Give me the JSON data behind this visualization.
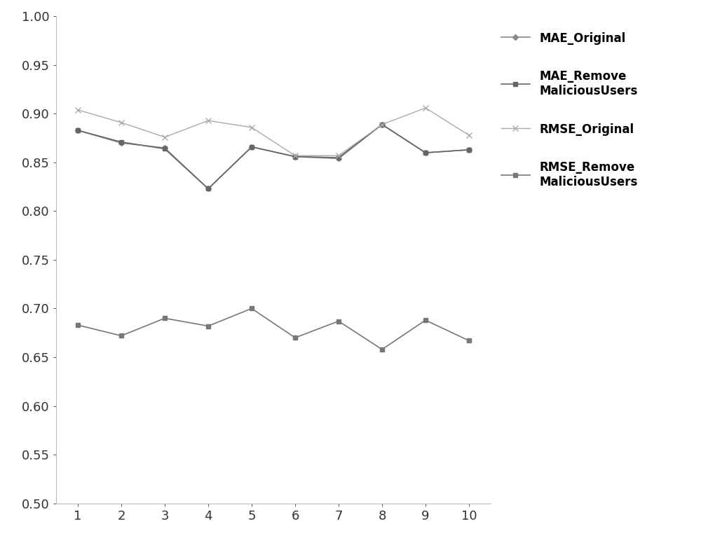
{
  "x": [
    1,
    2,
    3,
    4,
    5,
    6,
    7,
    8,
    9,
    10
  ],
  "MAE_Original": [
    0.883,
    0.87,
    0.865,
    0.823,
    0.866,
    0.856,
    0.854,
    0.889,
    0.86,
    0.863
  ],
  "MAE_Remove": [
    0.883,
    0.871,
    0.864,
    0.823,
    0.866,
    0.856,
    0.855,
    0.889,
    0.86,
    0.863
  ],
  "RMSE_Original": [
    0.904,
    0.891,
    0.876,
    0.893,
    0.886,
    0.857,
    0.857,
    0.889,
    0.906,
    0.878
  ],
  "RMSE_Remove_MU": [
    0.683,
    0.672,
    0.69,
    0.682,
    0.7,
    0.67,
    0.687,
    0.658,
    0.688,
    0.667
  ],
  "ylim": [
    0.5,
    1.0
  ],
  "yticks": [
    0.5,
    0.55,
    0.6,
    0.65,
    0.7,
    0.75,
    0.8,
    0.85,
    0.9,
    0.95,
    1.0
  ],
  "legend_labels": [
    "MAE_Original",
    "MAE_Remove\nMaliciousUsers",
    "RMSE_Original",
    "RMSE_Remove\nMaliciousUsers"
  ],
  "background_color": "#ffffff",
  "color_mae_orig": "#888888",
  "color_mae_remove": "#666666",
  "color_rmse_orig": "#aaaaaa",
  "color_rmse_remove": "#777777"
}
